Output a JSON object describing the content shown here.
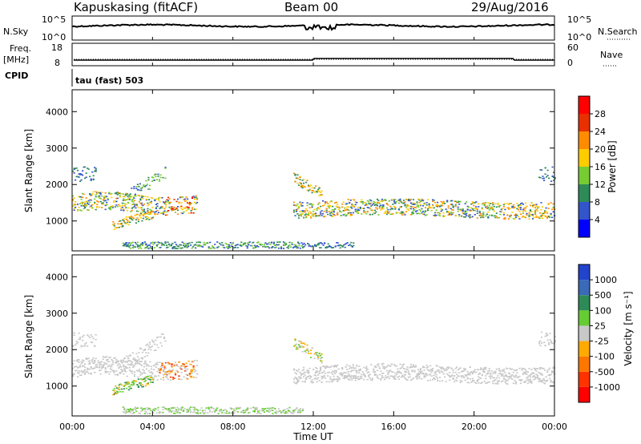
{
  "header": {
    "station": "Kapuskasing (fitACF)",
    "beam": "Beam 00",
    "date": "29/Aug/2016"
  },
  "top_panels": {
    "nsky_label": "N.Sky",
    "nsky_ticks": [
      "10^5",
      "10^0"
    ],
    "nsearch_label": "N.Search",
    "nsearch_ticks": [
      "10^5",
      "10^0"
    ],
    "freq_label": "Freq.",
    "freq_unit": "[MHz]",
    "freq_ticks": [
      "18",
      "8"
    ],
    "nave_label": "Nave",
    "nave_ticks": [
      "60",
      "0"
    ],
    "cpid_label": "CPID",
    "cpid_text": "tau (fast) 503"
  },
  "chart_data": [
    {
      "type": "heatmap",
      "name": "power",
      "ylabel": "Slant Range [km]",
      "ylim": [
        180,
        4600
      ],
      "yticks": [
        "1000",
        "2000",
        "3000",
        "4000"
      ],
      "colorbar_label": "Power [dB]",
      "colorbar_ticks": [
        "4",
        "8",
        "12",
        "16",
        "20",
        "24",
        "28"
      ],
      "colorbar_colors": [
        "#0000ff",
        "#3355cc",
        "#2e8b57",
        "#77cc33",
        "#ffcc00",
        "#ff8c00",
        "#e83000",
        "#ff0000"
      ]
    },
    {
      "type": "heatmap",
      "name": "velocity",
      "ylabel": "Slant Range [km]",
      "ylim": [
        180,
        4600
      ],
      "yticks": [
        "1000",
        "2000",
        "3000",
        "4000"
      ],
      "colorbar_label": "Velocity [m s⁻¹]",
      "colorbar_ticks": [
        "1000",
        "500",
        "100",
        "25",
        "-25",
        "-100",
        "-500",
        "-1000"
      ],
      "colorbar_colors": [
        "#2244cc",
        "#3a6ab8",
        "#2e8b57",
        "#66cc33",
        "#c8c8c8",
        "#ffaa00",
        "#ff7700",
        "#ff3300",
        "#ff0000"
      ]
    }
  ],
  "xaxis": {
    "label": "Time UT",
    "ticks": [
      "00:00",
      "04:00",
      "08:00",
      "12:00",
      "16:00",
      "20:00",
      "00:00"
    ]
  }
}
